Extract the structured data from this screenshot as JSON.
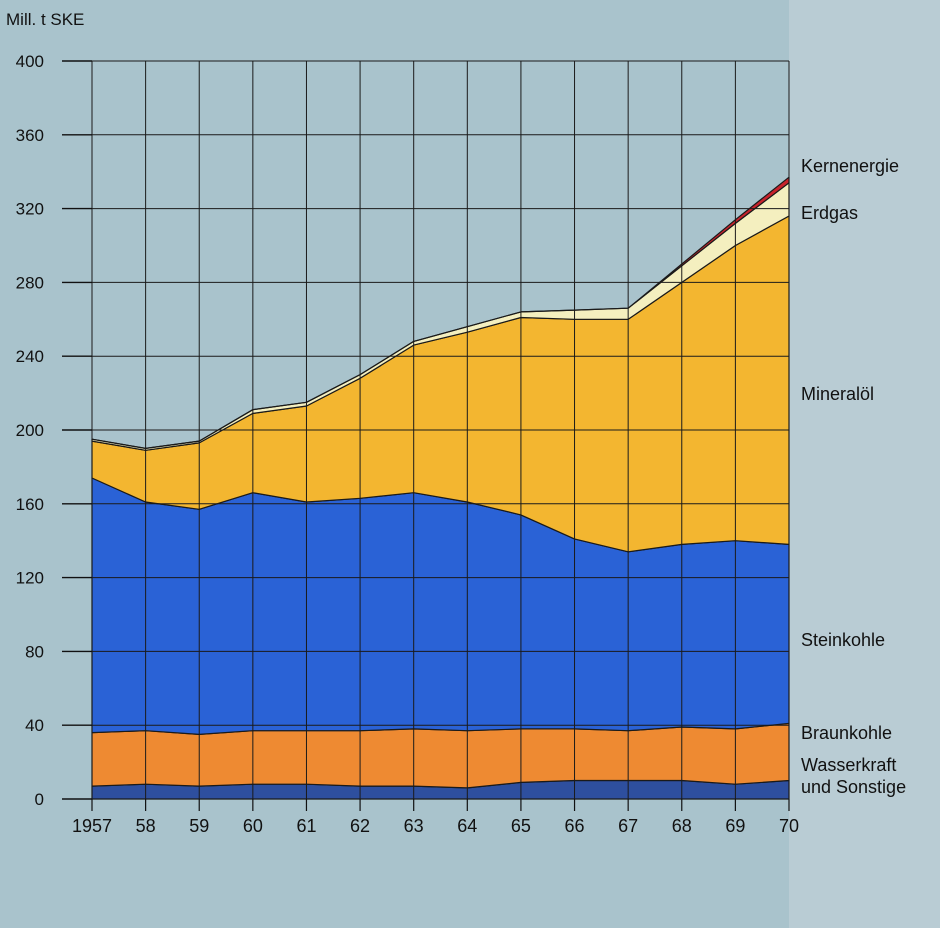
{
  "chart_data": {
    "type": "area",
    "stacked": true,
    "title": "",
    "ylabel": "Mill. t SKE",
    "xlabel": "",
    "ylim": [
      0,
      400
    ],
    "yticks": [
      0,
      40,
      80,
      120,
      160,
      200,
      240,
      280,
      320,
      360,
      400
    ],
    "categories": [
      "1957",
      "58",
      "59",
      "60",
      "61",
      "62",
      "63",
      "64",
      "65",
      "66",
      "67",
      "68",
      "69",
      "70"
    ],
    "series": [
      {
        "name": "Wasserkraft und Sonstige",
        "label_lines": [
          "Wasserkraft",
          "und Sonstige"
        ],
        "color": "#2e4f9e",
        "values": [
          7,
          8,
          7,
          8,
          8,
          7,
          7,
          6,
          9,
          10,
          10,
          10,
          8,
          10
        ]
      },
      {
        "name": "Braunkohle",
        "label_lines": [
          "Braunkohle"
        ],
        "color": "#ee8a32",
        "values": [
          29,
          29,
          28,
          29,
          29,
          30,
          31,
          31,
          29,
          28,
          27,
          29,
          30,
          31
        ]
      },
      {
        "name": "Steinkohle",
        "label_lines": [
          "Steinkohle"
        ],
        "color": "#2a62d6",
        "values": [
          138,
          124,
          122,
          129,
          124,
          126,
          128,
          124,
          116,
          103,
          97,
          99,
          102,
          97
        ]
      },
      {
        "name": "Mineralöl",
        "label_lines": [
          "Mineralöl"
        ],
        "color": "#f3b630",
        "values": [
          20,
          28,
          36,
          43,
          52,
          65,
          80,
          92,
          107,
          119,
          126,
          142,
          160,
          178
        ]
      },
      {
        "name": "Erdgas",
        "label_lines": [
          "Erdgas"
        ],
        "color": "#f4efbf",
        "values": [
          1,
          1,
          1,
          2,
          2,
          2,
          2,
          3,
          3,
          5,
          6,
          9,
          12,
          18
        ]
      },
      {
        "name": "Kernenergie",
        "label_lines": [
          "Kernenergie"
        ],
        "color": "#c8232c",
        "values": [
          0,
          0,
          0,
          0,
          0,
          0,
          0,
          0,
          0,
          0,
          0,
          1,
          2,
          3
        ]
      }
    ]
  }
}
